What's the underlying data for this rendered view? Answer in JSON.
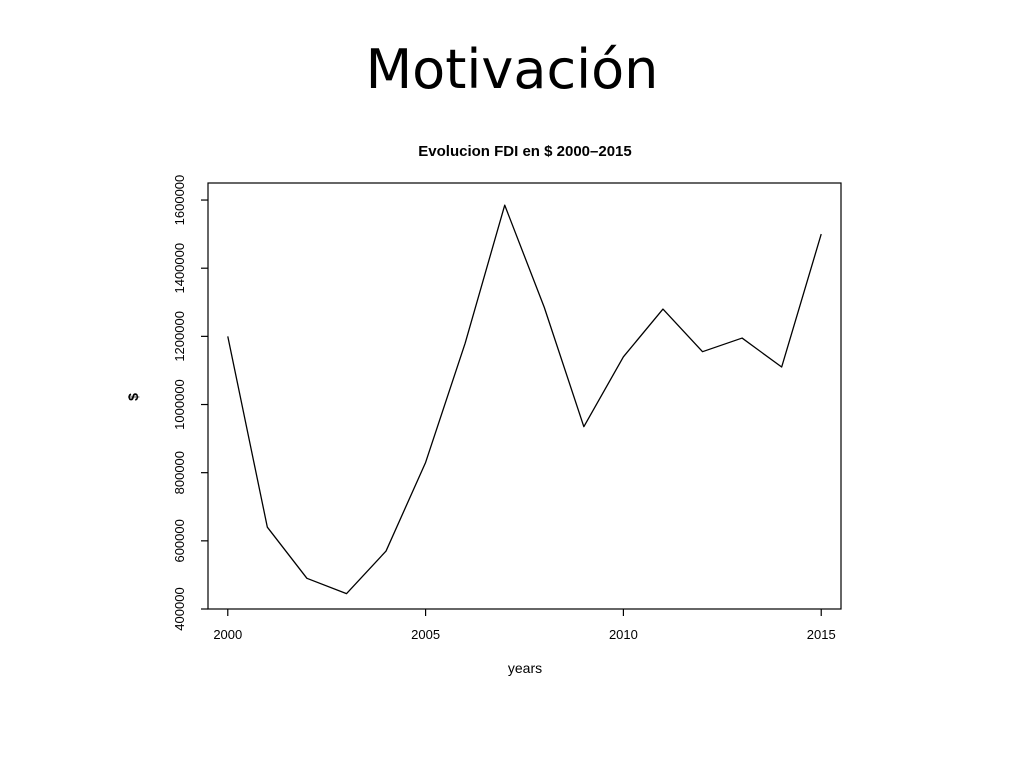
{
  "slide": {
    "title": "Motivación"
  },
  "chart_data": {
    "type": "line",
    "title": "Evolucion FDI en $ 2000–2015",
    "xlabel": "years",
    "ylabel": "$",
    "x": [
      2000,
      2001,
      2002,
      2003,
      2004,
      2005,
      2006,
      2007,
      2008,
      2009,
      2010,
      2011,
      2012,
      2013,
      2014,
      2015
    ],
    "series": [
      {
        "values": [
          1200000,
          640000,
          490000,
          445000,
          570000,
          830000,
          1180000,
          1585000,
          1285000,
          935000,
          1140000,
          1280000,
          1155000,
          1195000,
          1110000,
          1500000
        ]
      }
    ],
    "xlim": [
      1999.5,
      2015.5
    ],
    "ylim": [
      400000,
      1650000
    ],
    "x_ticks": [
      2000,
      2005,
      2010,
      2015
    ],
    "y_ticks": [
      400000,
      600000,
      800000,
      1000000,
      1200000,
      1400000,
      1600000
    ],
    "x_tick_labels": [
      "2000",
      "2005",
      "2010",
      "2015"
    ],
    "y_tick_labels": [
      "400000",
      "600000",
      "800000",
      "1000000",
      "1200000",
      "1400000",
      "1600000"
    ],
    "grid": false,
    "line_color": "#000000"
  }
}
